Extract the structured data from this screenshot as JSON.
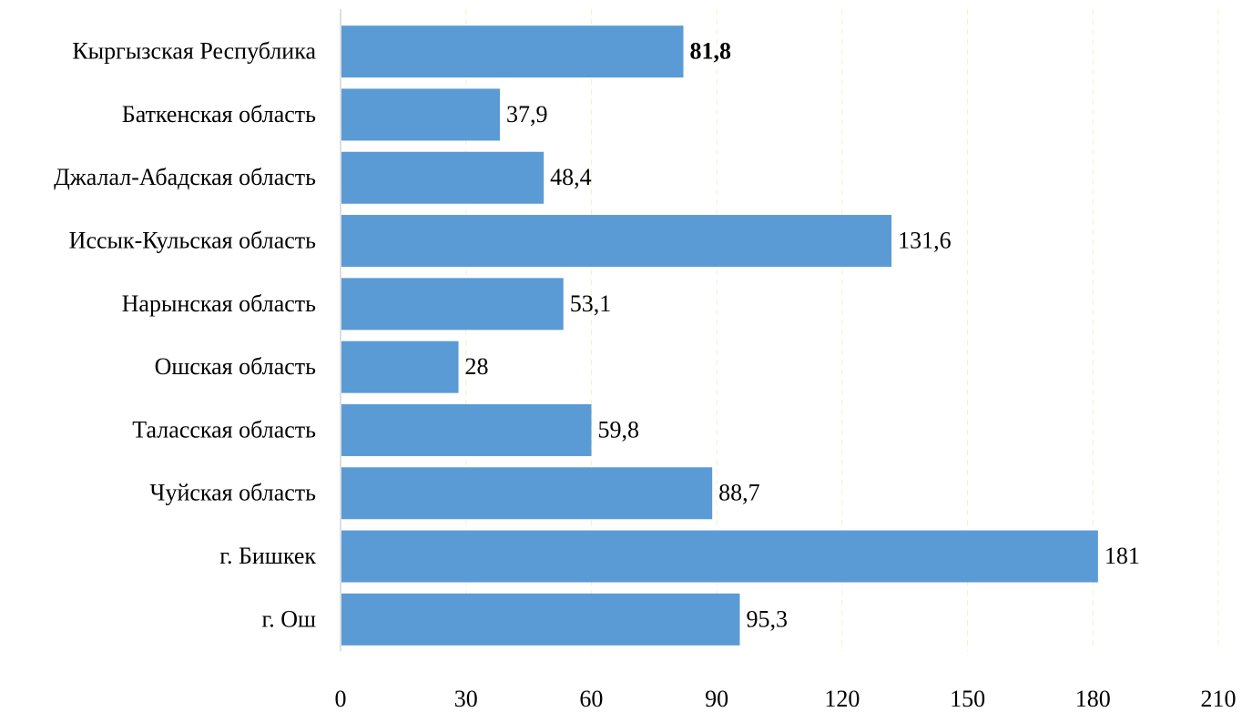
{
  "chart_data": {
    "type": "barh",
    "categories": [
      "Кыргызская Республика",
      "Баткенская область",
      "Джалал-Абадская область",
      "Иссык-Кульская область",
      "Нарынская область",
      "Ошская область",
      "Таласская область",
      "Чуйская область",
      "г. Бишкек",
      "г. Ош"
    ],
    "values": [
      81.8,
      37.9,
      48.4,
      131.6,
      53.1,
      28,
      59.8,
      88.7,
      181,
      95.3
    ],
    "value_labels": [
      "81,8",
      "37,9",
      "48,4",
      "131,6",
      "53,1",
      "28",
      "59,8",
      "88,7",
      "181",
      "95,3"
    ],
    "color": "#5b9bd5",
    "xlim": [
      0,
      210
    ],
    "xticks": [
      0,
      30,
      60,
      90,
      120,
      150,
      180,
      210
    ],
    "grid": true
  }
}
